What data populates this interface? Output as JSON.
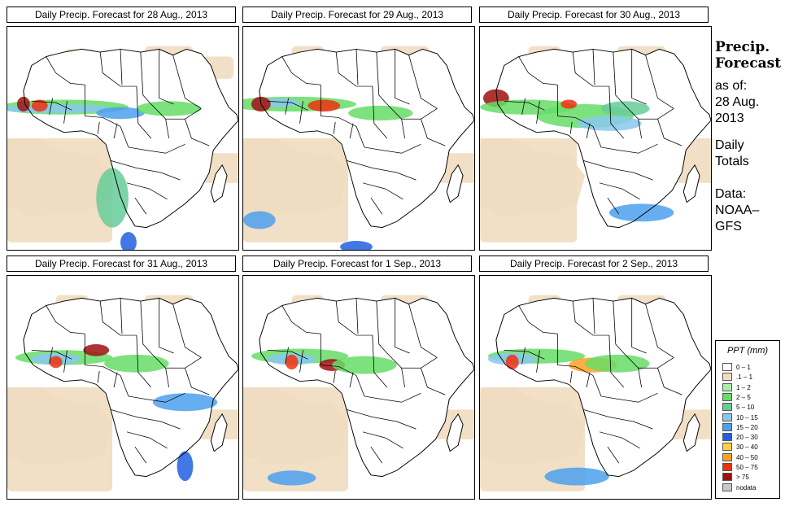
{
  "panels": [
    {
      "title": "Daily Precip. Forecast for  28 Aug., 2013",
      "date": "28 Aug., 2013"
    },
    {
      "title": "Daily Precip. Forecast for  29 Aug., 2013",
      "date": "29 Aug., 2013"
    },
    {
      "title": "Daily Precip. Forecast for  30 Aug., 2013",
      "date": "30 Aug., 2013"
    },
    {
      "title": "Daily Precip. Forecast for  31 Aug., 2013",
      "date": "31 Aug., 2013"
    },
    {
      "title": "Daily Precip. Forecast for  1 Sep., 2013",
      "date": "1 Sep., 2013"
    },
    {
      "title": "Daily Precip. Forecast for  2 Sep., 2013",
      "date": "2 Sep., 2013"
    }
  ],
  "side": {
    "title_line1": "Precip.",
    "title_line2": "Forecast",
    "asof_line1": "as of:",
    "asof_line2": "28 Aug.",
    "asof_line3": "2013",
    "totals_line1": "Daily",
    "totals_line2": "Totals",
    "data_line1": "Data:",
    "data_line2": "NOAA–",
    "data_line3": "GFS"
  },
  "legend": {
    "title": "PPT (mm)",
    "items": [
      {
        "label": "0 – 1",
        "color": "#ffffff"
      },
      {
        "label": ".1 – 1",
        "color": "#f0dcc0"
      },
      {
        "label": "1 – 2",
        "color": "#a8f0a8"
      },
      {
        "label": "2 – 5",
        "color": "#66dd66"
      },
      {
        "label": "5 – 10",
        "color": "#66cc99"
      },
      {
        "label": "10 – 15",
        "color": "#88c8f0"
      },
      {
        "label": "15 – 20",
        "color": "#4ca0ee"
      },
      {
        "label": "20 – 30",
        "color": "#2060e0"
      },
      {
        "label": "30 – 40",
        "color": "#ffd040"
      },
      {
        "label": "40 – 50",
        "color": "#ffa020"
      },
      {
        "label": "50 – 75",
        "color": "#ee3010"
      },
      {
        "label": "> 75",
        "color": "#a01010"
      },
      {
        "label": "nodata",
        "color": "#c8c8c8"
      }
    ]
  }
}
